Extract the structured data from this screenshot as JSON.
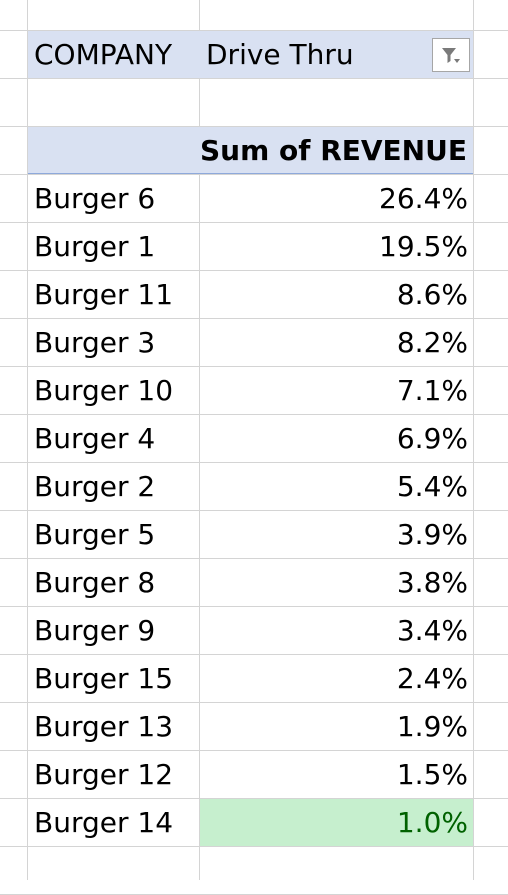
{
  "pivot": {
    "filter_label": "COMPANY",
    "filter_value": "Drive Thru",
    "value_header": "Sum of REVENUE",
    "rows": [
      {
        "label": "Burger 6",
        "value": "26.4%"
      },
      {
        "label": "Burger 1",
        "value": "19.5%"
      },
      {
        "label": "Burger 11",
        "value": "8.6%"
      },
      {
        "label": "Burger 3",
        "value": "8.2%"
      },
      {
        "label": "Burger 10",
        "value": "7.1%"
      },
      {
        "label": "Burger 4",
        "value": "6.9%"
      },
      {
        "label": "Burger 2",
        "value": "5.4%"
      },
      {
        "label": "Burger 5",
        "value": "3.9%"
      },
      {
        "label": "Burger 8",
        "value": "3.8%"
      },
      {
        "label": "Burger 9",
        "value": "3.4%"
      },
      {
        "label": "Burger 15",
        "value": "2.4%"
      },
      {
        "label": "Burger 13",
        "value": "1.9%"
      },
      {
        "label": "Burger 12",
        "value": "1.5%"
      },
      {
        "label": "Burger 14",
        "value": "1.0%"
      }
    ]
  },
  "colors": {
    "header_fill": "#d9e1f2",
    "highlight_fill": "#c6efce",
    "highlight_text": "#006100",
    "gridline": "#d4d4d4"
  },
  "icons": {
    "filter_button": "filter-funnel-icon"
  }
}
